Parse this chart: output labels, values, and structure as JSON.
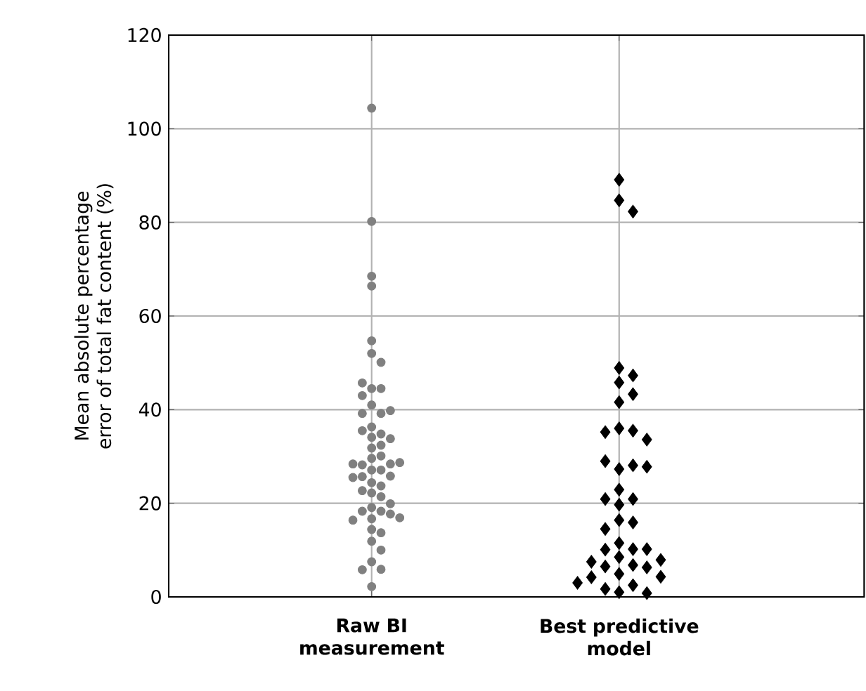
{
  "chart_data": {
    "type": "scatter",
    "ylabel": "Mean absolute percentage error of total fat content (%)",
    "categories": [
      "Raw BI measurement",
      "Best predictive model"
    ],
    "ylim": [
      0,
      120
    ],
    "yticks": [
      0,
      20,
      40,
      60,
      80,
      100,
      120
    ],
    "grid": true,
    "series": [
      {
        "color": "#808080",
        "marker": "circle",
        "x": [
          "Raw BI measurement",
          "Raw BI measurement",
          "Raw BI measurement",
          "Raw BI measurement",
          "Raw BI measurement",
          "Raw BI measurement",
          "Raw BI measurement",
          "Raw BI measurement",
          "Raw BI measurement",
          "Raw BI measurement",
          "Raw BI measurement",
          "Raw BI measurement",
          "Raw BI measurement",
          "Raw BI measurement",
          "Raw BI measurement",
          "Raw BI measurement",
          "Raw BI measurement",
          "Raw BI measurement",
          "Raw BI measurement",
          "Raw BI measurement",
          "Raw BI measurement",
          "Raw BI measurement",
          "Raw BI measurement",
          "Raw BI measurement",
          "Raw BI measurement",
          "Raw BI measurement",
          "Raw BI measurement",
          "Raw BI measurement",
          "Raw BI measurement",
          "Raw BI measurement",
          "Raw BI measurement",
          "Raw BI measurement",
          "Raw BI measurement",
          "Raw BI measurement",
          "Raw BI measurement",
          "Raw BI measurement",
          "Raw BI measurement",
          "Raw BI measurement",
          "Raw BI measurement",
          "Raw BI measurement",
          "Raw BI measurement",
          "Raw BI measurement",
          "Raw BI measurement",
          "Raw BI measurement",
          "Raw BI measurement",
          "Raw BI measurement",
          "Raw BI measurement",
          "Raw BI measurement",
          "Raw BI measurement",
          "Raw BI measurement",
          "Raw BI measurement",
          "Raw BI measurement",
          "Raw BI measurement",
          "Raw BI measurement"
        ],
        "values": [
          104.4,
          80.2,
          68.5,
          66.4,
          54.7,
          52.0,
          50.1,
          44.5,
          44.5,
          45.7,
          43.0,
          41.0,
          39.2,
          39.2,
          39.8,
          36.3,
          34.8,
          35.5,
          34.1,
          33.8,
          32.4,
          31.8,
          30.1,
          29.6,
          28.2,
          28.4,
          27.1,
          28.4,
          28.7,
          27.1,
          25.7,
          25.8,
          25.5,
          24.4,
          23.7,
          22.7,
          22.2,
          21.4,
          19.1,
          18.3,
          18.3,
          19.9,
          17.7,
          16.7,
          16.4,
          16.9,
          14.4,
          13.7,
          11.9,
          10.0,
          7.5,
          5.9,
          5.8,
          2.2
        ]
      },
      {
        "color": "#000000",
        "marker": "diamond",
        "x": [
          "Best predictive model",
          "Best predictive model",
          "Best predictive model",
          "Best predictive model",
          "Best predictive model",
          "Best predictive model",
          "Best predictive model",
          "Best predictive model",
          "Best predictive model",
          "Best predictive model",
          "Best predictive model",
          "Best predictive model",
          "Best predictive model",
          "Best predictive model",
          "Best predictive model",
          "Best predictive model",
          "Best predictive model",
          "Best predictive model",
          "Best predictive model",
          "Best predictive model",
          "Best predictive model",
          "Best predictive model",
          "Best predictive model",
          "Best predictive model",
          "Best predictive model",
          "Best predictive model",
          "Best predictive model",
          "Best predictive model",
          "Best predictive model",
          "Best predictive model",
          "Best predictive model",
          "Best predictive model",
          "Best predictive model",
          "Best predictive model",
          "Best predictive model",
          "Best predictive model",
          "Best predictive model",
          "Best predictive model",
          "Best predictive model",
          "Best predictive model",
          "Best predictive model"
        ],
        "values": [
          89.1,
          84.7,
          82.3,
          48.9,
          47.3,
          45.8,
          43.3,
          41.6,
          36.0,
          35.5,
          35.2,
          33.6,
          27.3,
          28.1,
          29.0,
          27.8,
          22.9,
          20.9,
          19.7,
          20.9,
          16.4,
          15.9,
          14.5,
          11.5,
          10.2,
          10.1,
          10.2,
          8.5,
          7.5,
          6.8,
          7.9,
          6.5,
          6.3,
          4.9,
          4.2,
          4.3,
          2.5,
          1.0,
          1.7,
          0.8,
          3.0
        ]
      }
    ]
  }
}
